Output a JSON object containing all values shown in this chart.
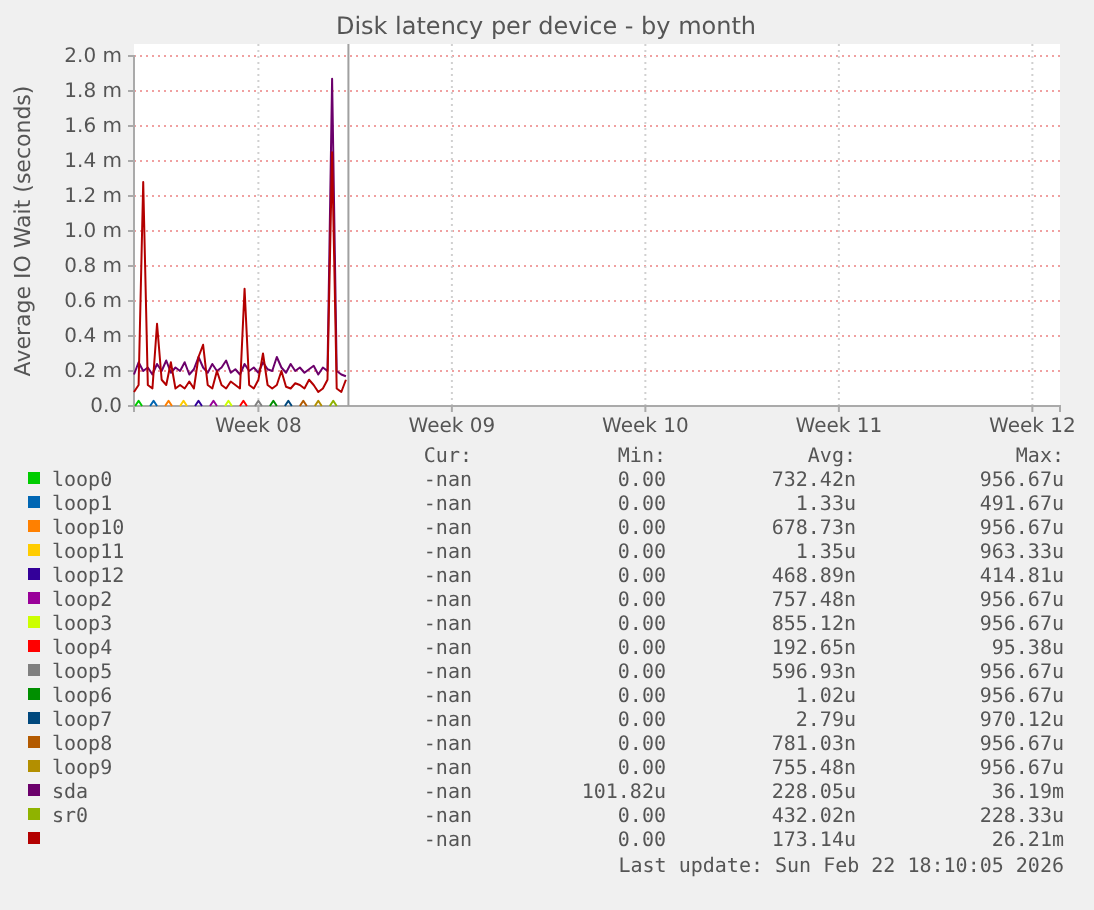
{
  "chart_data": {
    "type": "line",
    "title": "Disk latency per device - by month",
    "ylabel": "Average IO Wait (seconds)",
    "xlim": [
      "2026-02-15",
      "2026-03-20T12:00"
    ],
    "xticks": [
      {
        "value": "2026-02-19T12:00",
        "label": "Week 08"
      },
      {
        "value": "2026-02-26T12:00",
        "label": "Week 09"
      },
      {
        "value": "2026-03-05T12:00",
        "label": "Week 10"
      },
      {
        "value": "2026-03-12T12:00",
        "label": "Week 11"
      },
      {
        "value": "2026-03-19T12:00",
        "label": "Week 12"
      }
    ],
    "ylim": [
      0,
      2
    ],
    "yticks": [
      {
        "value": 0,
        "label": "0.0"
      },
      {
        "value": 0.2,
        "label": "0.2 m"
      },
      {
        "value": 0.4,
        "label": "0.4 m"
      },
      {
        "value": 0.6,
        "label": "0.6 m"
      },
      {
        "value": 0.8,
        "label": "0.8 m"
      },
      {
        "value": 1,
        "label": "1.0 m"
      },
      {
        "value": 1.2,
        "label": "1.2 m"
      },
      {
        "value": 1.4,
        "label": "1.4 m"
      },
      {
        "value": 1.6,
        "label": "1.6 m"
      },
      {
        "value": 1.8,
        "label": "1.8 m"
      },
      {
        "value": 2,
        "label": "2.0 m"
      }
    ],
    "grid": true,
    "legend": "bottom",
    "line_style": "solid",
    "marker": "none",
    "ref_lines": [
      {
        "axis": "x",
        "value": "2026-02-22T18:10",
        "color": "#a0a0a0"
      }
    ],
    "series": [
      {
        "name": "loop0",
        "color": "#00cc00",
        "x": [
          "2026-02-15T01:00",
          "2026-02-15T04:00",
          "2026-02-15T07:00"
        ],
        "values": [
          0,
          0.03,
          0
        ]
      },
      {
        "name": "loop1",
        "color": "#0066b3",
        "x": [
          "2026-02-15T14:00",
          "2026-02-15T17:00",
          "2026-02-15T20:00"
        ],
        "values": [
          0,
          0.03,
          0
        ]
      },
      {
        "name": "loop10",
        "color": "#ff8000",
        "x": [
          "2026-02-16T03:00",
          "2026-02-16T06:00",
          "2026-02-16T09:00"
        ],
        "values": [
          0,
          0.03,
          0
        ]
      },
      {
        "name": "loop11",
        "color": "#ffcc00",
        "x": [
          "2026-02-16T16:00",
          "2026-02-16T19:00",
          "2026-02-16T22:00"
        ],
        "values": [
          0,
          0.03,
          0
        ]
      },
      {
        "name": "loop12",
        "color": "#330099",
        "x": [
          "2026-02-17T05:00",
          "2026-02-17T08:00",
          "2026-02-17T11:00"
        ],
        "values": [
          0,
          0.03,
          0
        ]
      },
      {
        "name": "loop2",
        "color": "#990099",
        "x": [
          "2026-02-17T18:00",
          "2026-02-17T21:00",
          "2026-02-18T00:00"
        ],
        "values": [
          0,
          0.03,
          0
        ]
      },
      {
        "name": "loop3",
        "color": "#ccff00",
        "x": [
          "2026-02-18T07:00",
          "2026-02-18T10:00",
          "2026-02-18T13:00"
        ],
        "values": [
          0,
          0.03,
          0
        ]
      },
      {
        "name": "loop4",
        "color": "#ff0000",
        "x": [
          "2026-02-18T20:00",
          "2026-02-18T23:00",
          "2026-02-19T02:00"
        ],
        "values": [
          0,
          0.03,
          0
        ]
      },
      {
        "name": "loop5",
        "color": "#808080",
        "x": [
          "2026-02-19T09:00",
          "2026-02-19T12:00",
          "2026-02-19T15:00"
        ],
        "values": [
          0,
          0.03,
          0
        ]
      },
      {
        "name": "loop6",
        "color": "#008f00",
        "x": [
          "2026-02-19T22:00",
          "2026-02-20T01:00",
          "2026-02-20T04:00"
        ],
        "values": [
          0,
          0.03,
          0
        ]
      },
      {
        "name": "loop7",
        "color": "#00487d",
        "x": [
          "2026-02-20T11:00",
          "2026-02-20T14:00",
          "2026-02-20T17:00"
        ],
        "values": [
          0,
          0.03,
          0
        ]
      },
      {
        "name": "loop8",
        "color": "#b35a00",
        "x": [
          "2026-02-21T00:00",
          "2026-02-21T03:00",
          "2026-02-21T06:00"
        ],
        "values": [
          0,
          0.03,
          0
        ]
      },
      {
        "name": "loop9",
        "color": "#b38f00",
        "x": [
          "2026-02-21T13:00",
          "2026-02-21T16:00",
          "2026-02-21T19:00"
        ],
        "values": [
          0,
          0.03,
          0
        ]
      },
      {
        "name": "sda",
        "color": "#6b006b",
        "values": [
          0.18,
          0.25,
          0.2,
          0.22,
          0.18,
          0.24,
          0.2,
          0.26,
          0.19,
          0.22,
          0.2,
          0.25,
          0.18,
          0.21,
          0.28,
          0.22,
          0.19,
          0.24,
          0.2,
          0.22,
          0.26,
          0.19,
          0.21,
          0.18,
          0.24,
          0.2,
          0.22,
          0.19,
          0.25,
          0.21,
          0.2,
          0.28,
          0.22,
          0.19,
          0.24,
          0.2,
          0.22,
          0.19,
          0.21,
          0.23,
          0.18,
          0.22,
          0.2,
          1.87,
          0.2,
          0.18,
          0.17
        ]
      },
      {
        "name": "sr0",
        "color": "#8fb300",
        "x": [
          "2026-02-22T02:00",
          "2026-02-22T05:00",
          "2026-02-22T08:00"
        ],
        "values": [
          0,
          0.03,
          0
        ]
      },
      {
        "color": "#b30000",
        "values": [
          0.08,
          0.12,
          1.28,
          0.12,
          0.1,
          0.47,
          0.15,
          0.12,
          0.25,
          0.1,
          0.12,
          0.1,
          0.14,
          0.1,
          0.28,
          0.35,
          0.12,
          0.1,
          0.2,
          0.12,
          0.1,
          0.14,
          0.12,
          0.1,
          0.67,
          0.12,
          0.1,
          0.15,
          0.3,
          0.12,
          0.1,
          0.12,
          0.2,
          0.11,
          0.1,
          0.13,
          0.12,
          0.1,
          0.15,
          0.12,
          0.08,
          0.1,
          0.15,
          1.45,
          0.1,
          0.08,
          0.15
        ]
      }
    ],
    "x": [
      "2026-02-15T00:00",
      "2026-02-15T04:00",
      "2026-02-15T08:00",
      "2026-02-15T12:00",
      "2026-02-15T16:00",
      "2026-02-15T20:00",
      "2026-02-16T00:00",
      "2026-02-16T04:00",
      "2026-02-16T08:00",
      "2026-02-16T12:00",
      "2026-02-16T16:00",
      "2026-02-16T20:00",
      "2026-02-17T00:00",
      "2026-02-17T04:00",
      "2026-02-17T08:00",
      "2026-02-17T12:00",
      "2026-02-17T16:00",
      "2026-02-17T20:00",
      "2026-02-18T00:00",
      "2026-02-18T04:00",
      "2026-02-18T08:00",
      "2026-02-18T12:00",
      "2026-02-18T16:00",
      "2026-02-18T20:00",
      "2026-02-19T00:00",
      "2026-02-19T04:00",
      "2026-02-19T08:00",
      "2026-02-19T12:00",
      "2026-02-19T16:00",
      "2026-02-19T20:00",
      "2026-02-20T00:00",
      "2026-02-20T04:00",
      "2026-02-20T08:00",
      "2026-02-20T12:00",
      "2026-02-20T16:00",
      "2026-02-20T20:00",
      "2026-02-21T00:00",
      "2026-02-21T04:00",
      "2026-02-21T08:00",
      "2026-02-21T12:00",
      "2026-02-21T16:00",
      "2026-02-21T20:00",
      "2026-02-22T00:00",
      "2026-02-22T04:00",
      "2026-02-22T08:00",
      "2026-02-22T12:00",
      "2026-02-22T16:00"
    ],
    "annotations": [
      "Cur:",
      "Min:",
      "Avg:",
      "Max:",
      "-nan",
      "0.00",
      "732.42n",
      "956.67u",
      "-nan",
      "0.00",
      "1.33u",
      "491.67u",
      "-nan",
      "0.00",
      "678.73n",
      "956.67u",
      "-nan",
      "0.00",
      "1.35u",
      "963.33u",
      "-nan",
      "0.00",
      "468.89n",
      "414.81u",
      "-nan",
      "0.00",
      "757.48n",
      "956.67u",
      "-nan",
      "0.00",
      "855.12n",
      "956.67u",
      "-nan",
      "0.00",
      "192.65n",
      "95.38u",
      "-nan",
      "0.00",
      "596.93n",
      "956.67u",
      "-nan",
      "0.00",
      "1.02u",
      "956.67u",
      "-nan",
      "0.00",
      "2.79u",
      "970.12u",
      "-nan",
      "0.00",
      "781.03n",
      "956.67u",
      "-nan",
      "0.00",
      "755.48n",
      "956.67u",
      "-nan",
      "101.82u",
      "228.05u",
      "36.19m",
      "-nan",
      "0.00",
      "432.02n",
      "228.33u",
      "-nan",
      "0.00",
      "173.14u",
      "26.21m",
      "Last update: Sun Feb 22 18:10:05 2026"
    ]
  }
}
